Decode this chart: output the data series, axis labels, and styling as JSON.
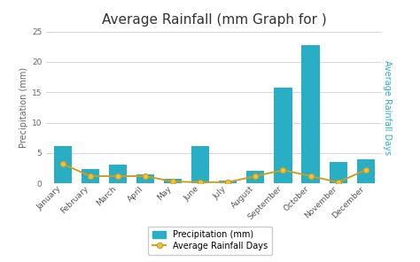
{
  "title": "Average Rainfall (mm Graph for )",
  "months": [
    "January",
    "February",
    "March",
    "April",
    "May",
    "June",
    "July",
    "August",
    "September",
    "October",
    "November",
    "December"
  ],
  "precipitation": [
    6.2,
    2.3,
    3.1,
    1.5,
    0.7,
    6.1,
    0.4,
    2.0,
    15.7,
    22.8,
    3.5,
    4.0
  ],
  "rainfall_days": [
    3.2,
    1.2,
    1.2,
    1.2,
    0.3,
    0.2,
    0.2,
    1.2,
    2.2,
    1.2,
    0.2,
    2.2
  ],
  "bar_color": "#29afc5",
  "line_color": "#c8a020",
  "marker_color": "#c8a020",
  "marker_face": "#f0c040",
  "ylabel_left": "Precipitation (mm)",
  "ylabel_right": "Average Rainfall Days",
  "ylim_left": [
    0,
    25
  ],
  "yticks_left": [
    0,
    5,
    10,
    15,
    20,
    25
  ],
  "background_color": "#ffffff",
  "grid_color": "#d0d0d0",
  "title_fontsize": 11,
  "axis_label_fontsize": 7,
  "tick_fontsize": 6.5,
  "right_label_color": "#29afc5",
  "legend_items": [
    "Precipitation (mm)",
    "Average Rainfall Days"
  ]
}
